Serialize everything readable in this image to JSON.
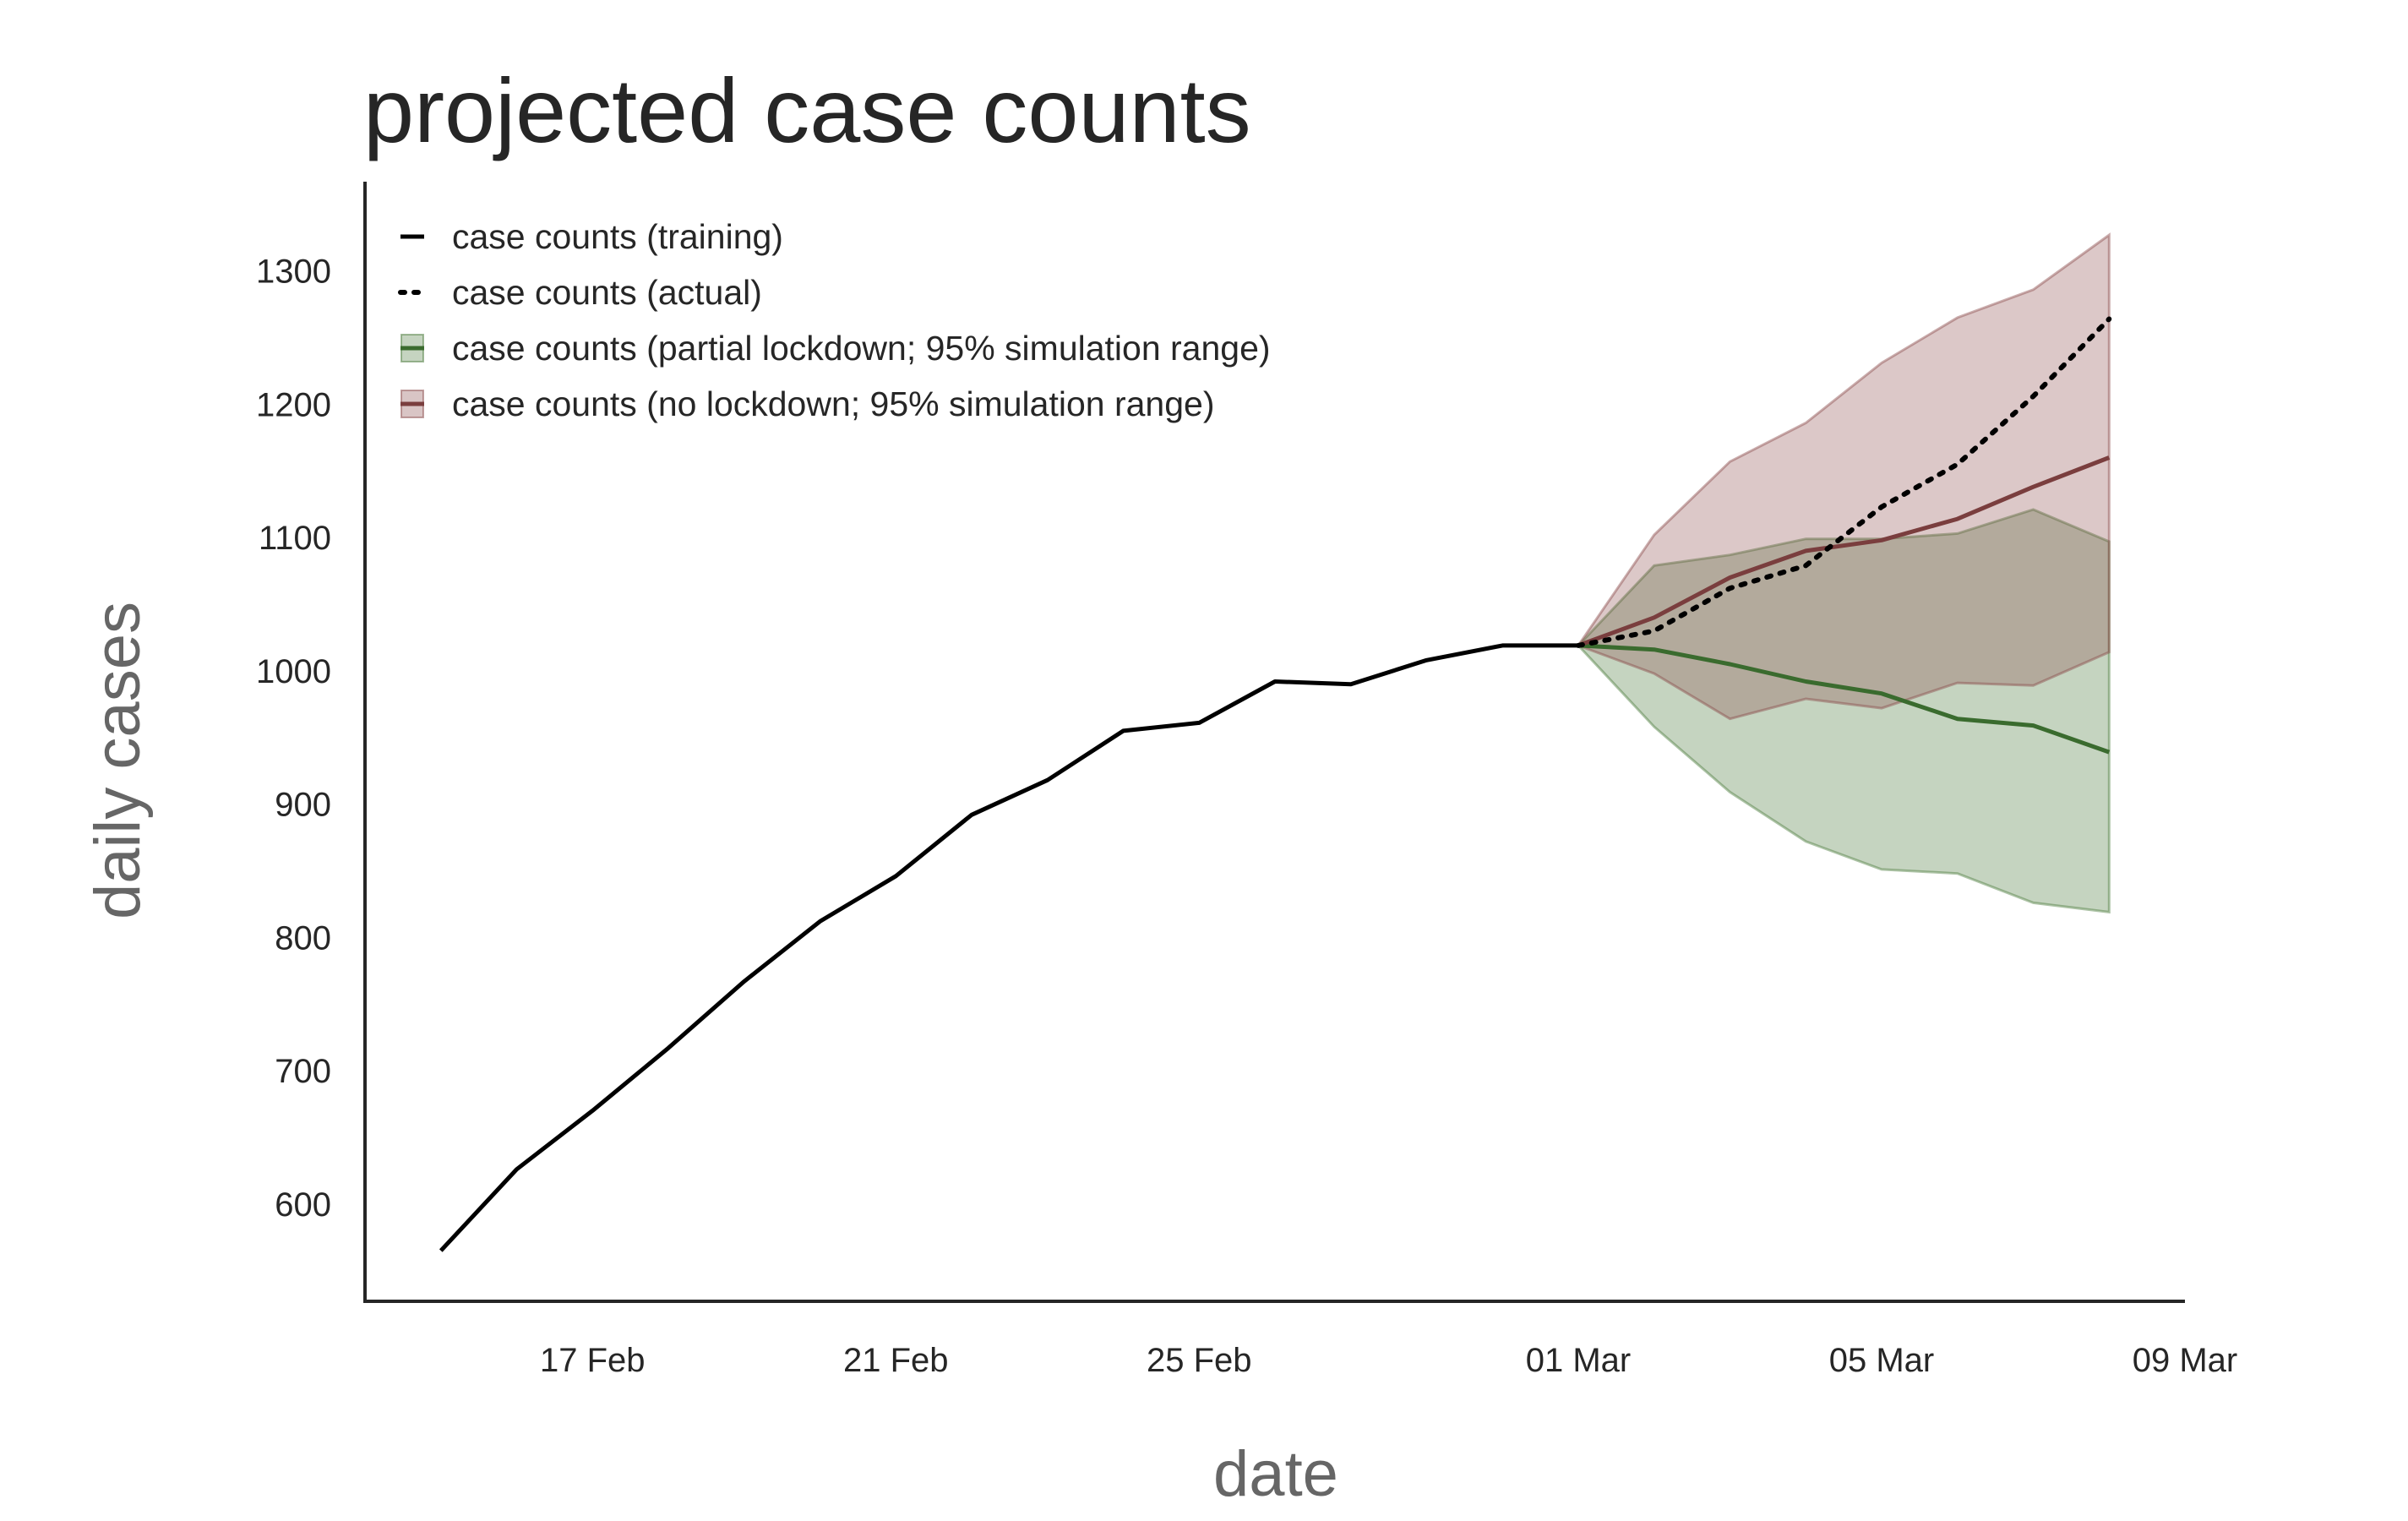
{
  "colors": {
    "training": "#000000",
    "actual": "#000000",
    "partial_line": "#3a6b2e",
    "partial_fill": "#4a7a3a",
    "no_line": "#7a3e3e",
    "no_fill": "#8a4a4a",
    "axis": "#262626"
  },
  "chart_data": {
    "type": "line",
    "title": "projected case counts",
    "xlabel": "date",
    "ylabel": "daily cases",
    "x_ticks": [
      "17 Feb",
      "21 Feb",
      "25 Feb",
      "01 Mar",
      "05 Mar",
      "09 Mar"
    ],
    "x_tick_dates": [
      "2020-02-17",
      "2020-02-21",
      "2020-02-25",
      "2020-03-01",
      "2020-03-05",
      "2020-03-09"
    ],
    "y_ticks": [
      600,
      700,
      800,
      900,
      1000,
      1100,
      1200,
      1300
    ],
    "xlim": [
      "2020-02-14",
      "2020-03-09"
    ],
    "ylim": [
      527,
      1367
    ],
    "grid": false,
    "legend": {
      "position": "top-left",
      "items": [
        {
          "label": "case counts (training)",
          "key": "training"
        },
        {
          "label": "case counts (actual)",
          "key": "actual"
        },
        {
          "label": "case counts (partial lockdown; 95% simulation range)",
          "key": "partial"
        },
        {
          "label": "case counts (no lockdown; 95% simulation range)",
          "key": "no"
        }
      ]
    },
    "series": [
      {
        "name": "case counts (training)",
        "x": [
          "2020-02-15",
          "2020-02-16",
          "2020-02-17",
          "2020-02-18",
          "2020-02-19",
          "2020-02-20",
          "2020-02-21",
          "2020-02-22",
          "2020-02-23",
          "2020-02-24",
          "2020-02-25",
          "2020-02-26",
          "2020-02-27",
          "2020-02-28",
          "2020-02-29",
          "2020-03-01"
        ],
        "y": [
          565,
          626,
          670,
          717,
          767,
          812,
          846,
          892,
          918,
          955,
          961,
          992,
          990,
          1008,
          1019,
          1019
        ]
      },
      {
        "name": "case counts (actual)",
        "x": [
          "2020-03-01",
          "2020-03-02",
          "2020-03-03",
          "2020-03-04",
          "2020-03-05",
          "2020-03-06",
          "2020-03-07",
          "2020-03-08"
        ],
        "y": [
          1019,
          1030,
          1062,
          1079,
          1123,
          1155,
          1206,
          1264
        ]
      },
      {
        "name": "case counts (partial lockdown; 95% simulation range)",
        "x": [
          "2020-03-01",
          "2020-03-02",
          "2020-03-03",
          "2020-03-04",
          "2020-03-05",
          "2020-03-06",
          "2020-03-07",
          "2020-03-08"
        ],
        "y": [
          1019,
          1016,
          1005,
          992,
          983,
          964,
          959,
          939
        ],
        "lower": [
          1019,
          958,
          909,
          872,
          851,
          848,
          826,
          819
        ],
        "upper": [
          1019,
          1079,
          1087,
          1099,
          1099,
          1103,
          1121,
          1097
        ]
      },
      {
        "name": "case counts (no lockdown; 95% simulation range)",
        "x": [
          "2020-03-01",
          "2020-03-02",
          "2020-03-03",
          "2020-03-04",
          "2020-03-05",
          "2020-03-06",
          "2020-03-07",
          "2020-03-08"
        ],
        "y": [
          1019,
          1040,
          1070,
          1090,
          1098,
          1114,
          1138,
          1160
        ],
        "lower": [
          1019,
          998,
          964,
          979,
          972,
          991,
          989,
          1014
        ],
        "upper": [
          1019,
          1102,
          1157,
          1186,
          1231,
          1265,
          1286,
          1327
        ]
      }
    ]
  }
}
